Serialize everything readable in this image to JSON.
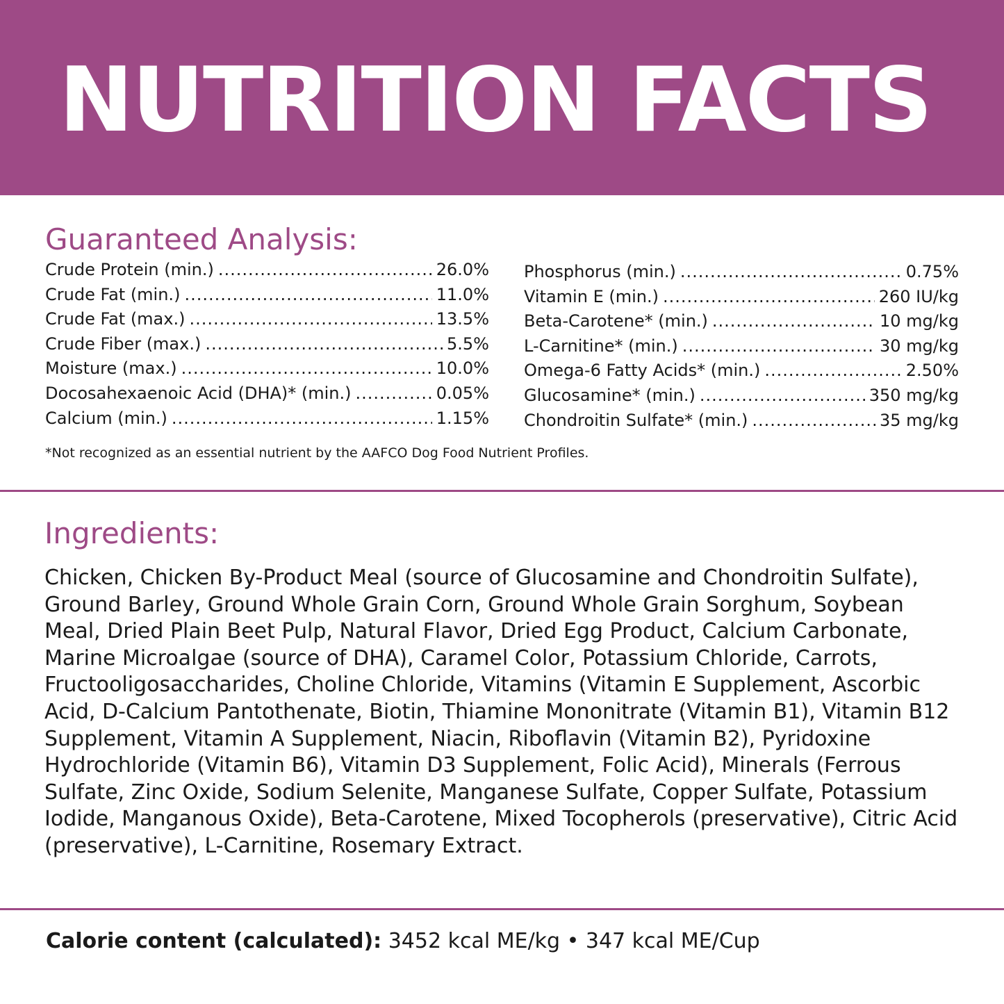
{
  "header": {
    "title": "NUTRITION FACTS",
    "background_color": "#9e4a86"
  },
  "guaranteed_analysis": {
    "title": "Guaranteed Analysis:",
    "left_column": [
      {
        "name": "Crude Protein (min.)",
        "value": "26.0%"
      },
      {
        "name": "Crude Fat (min.)",
        "value": "11.0%"
      },
      {
        "name": "Crude Fat (max.)",
        "value": "13.5%"
      },
      {
        "name": "Crude Fiber (max.)",
        "value": "5.5%"
      },
      {
        "name": "Moisture (max.)",
        "value": "10.0%"
      },
      {
        "name": "Docosahexaenoic Acid (DHA)* (min.)",
        "value": "0.05%"
      },
      {
        "name": "Calcium (min.)",
        "value": "1.15%"
      }
    ],
    "right_column": [
      {
        "name": "Phosphorus (min.)",
        "value": "0.75%"
      },
      {
        "name": "Vitamin E (min.)",
        "value": "260 IU/kg"
      },
      {
        "name": "Beta-Carotene* (min.)",
        "value": "10 mg/kg"
      },
      {
        "name": "L-Carnitine* (min.)",
        "value": "30 mg/kg"
      },
      {
        "name": "Omega-6 Fatty Acids* (min.)",
        "value": "2.50%"
      },
      {
        "name": "Glucosamine* (min.)",
        "value": "350 mg/kg"
      },
      {
        "name": "Chondroitin Sulfate* (min.)",
        "value": "35 mg/kg"
      }
    ],
    "footnote": "*Not recognized as an essential nutrient by the AAFCO Dog Food Nutrient Profiles."
  },
  "ingredients": {
    "title": "Ingredients:",
    "text": "Chicken, Chicken By-Product Meal (source of Glucosamine and Chondroitin Sulfate), Ground Barley, Ground Whole Grain Corn, Ground Whole Grain Sorghum, Soybean Meal, Dried Plain Beet Pulp, Natural Flavor, Dried Egg Product, Calcium Carbonate, Marine Microalgae (source of DHA), Caramel Color, Potassium Chloride, Carrots, Fructooligosaccharides, Choline Chloride, Vitamins (Vitamin E Supplement, Ascorbic Acid, D-Calcium Pantothenate, Biotin, Thiamine Mononitrate (Vitamin B1), Vitamin B12 Supplement, Vitamin A Supplement, Niacin, Riboflavin (Vitamin B2), Pyridoxine Hydrochloride (Vitamin B6), Vitamin D3 Supplement, Folic Acid), Minerals (Ferrous Sulfate, Zinc Oxide, Sodium Selenite, Manganese Sulfate, Copper Sulfate, Potassium Iodide, Manganous Oxide), Beta-Carotene, Mixed Tocopherols (preservative), Citric Acid (preservative), L-Carnitine, Rosemary Extract."
  },
  "calorie": {
    "label": "Calorie content (calculated):",
    "value": "3452 kcal ME/kg • 347 kcal ME/Cup"
  },
  "colors": {
    "accent": "#9e4a86",
    "text": "#1a1a1a"
  }
}
